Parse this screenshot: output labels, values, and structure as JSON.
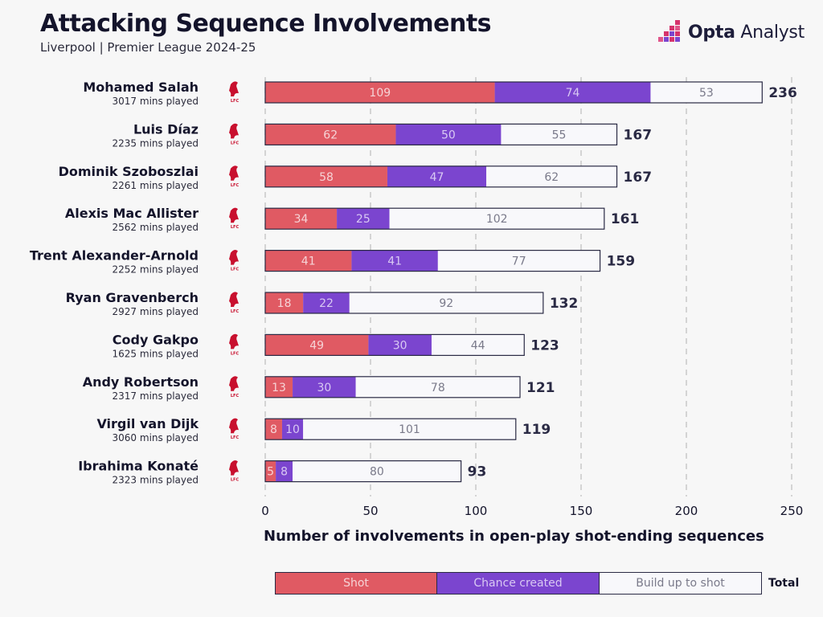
{
  "header": {
    "title": "Attacking Sequence Involvements",
    "subtitle": "Liverpool | Premier League 2024-25"
  },
  "brand": {
    "logo_text_bold": "Opta",
    "logo_text": " Analyst",
    "team_badge_text": "LFC"
  },
  "colors": {
    "shot": "#e05a63",
    "chance": "#7b45cf",
    "buildup": "#f8f8fb",
    "outline": "#2a2a44",
    "grid": "#c8c8c8",
    "text_dark": "#14142b",
    "badge": "#c8102e"
  },
  "legend": {
    "shot": "Shot",
    "chance": "Chance created",
    "buildup": "Build up to shot",
    "total": "Total"
  },
  "chart_data": {
    "type": "bar",
    "orientation": "horizontal",
    "stacked": true,
    "title": "Attacking Sequence Involvements",
    "subtitle": "Liverpool | Premier League 2024-25",
    "xlabel": "Number of involvements in open-play shot-ending sequences",
    "ylabel": "",
    "xlim": [
      0,
      250
    ],
    "xticks": [
      0,
      50,
      100,
      150,
      200,
      250
    ],
    "grid": "vertical dashed",
    "legend": "bottom",
    "mins_suffix": " mins played",
    "categories": [
      "Mohamed Salah",
      "Luis Díaz",
      "Dominik Szoboszlai",
      "Alexis Mac Allister",
      "Trent Alexander-Arnold",
      "Ryan Gravenberch",
      "Cody Gakpo",
      "Andy Robertson",
      "Virgil van Dijk",
      "Ibrahima Konaté"
    ],
    "minutes": [
      3017,
      2235,
      2261,
      2562,
      2252,
      2927,
      1625,
      2317,
      3060,
      2323
    ],
    "series": [
      {
        "name": "Shot",
        "values": [
          109,
          62,
          58,
          34,
          41,
          18,
          49,
          13,
          8,
          5
        ]
      },
      {
        "name": "Chance created",
        "values": [
          74,
          50,
          47,
          25,
          41,
          22,
          30,
          30,
          10,
          8
        ]
      },
      {
        "name": "Build up to shot",
        "values": [
          53,
          55,
          62,
          102,
          77,
          92,
          44,
          78,
          101,
          80
        ]
      }
    ],
    "totals": [
      236,
      167,
      167,
      161,
      159,
      132,
      123,
      121,
      119,
      93
    ]
  }
}
